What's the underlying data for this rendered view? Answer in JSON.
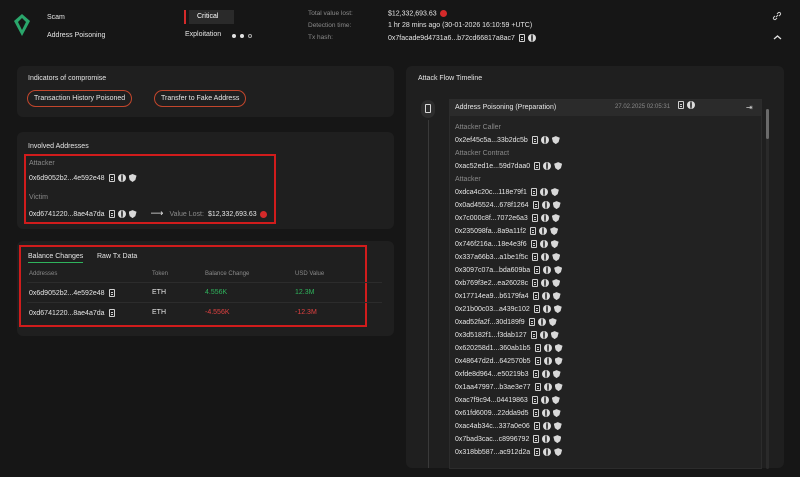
{
  "header": {
    "type": "Scam",
    "subtype": "Address Poisoning",
    "severity": "Critical",
    "stage": "Exploitation",
    "stage_dots": 3,
    "stage_active": 2,
    "total_value_lost_label": "Total value lost:",
    "total_value_lost": "$12,332,693.63",
    "detection_time_label": "Detection time:",
    "detection_time": "1 hr 28 mins ago (30-01-2026 16:10:59 +UTC)",
    "tx_hash_label": "Tx hash:",
    "tx_hash": "0x7facade9d4731a6...b72cd66817a8ac7",
    "link_icon": "link-icon",
    "collapse_icon": "chevron-up-icon"
  },
  "indicators": {
    "title": "Indicators of compromise",
    "items": [
      "Transaction History Poisoned",
      "Transfer to Fake Address"
    ]
  },
  "involved": {
    "title": "Involved Addresses",
    "attacker_label": "Attacker",
    "attacker_address": "0x6d9052b2...4e592e48",
    "victim_label": "Victim",
    "victim_address": "0xd6741220...8ae4a7da",
    "value_lost_label": "Value Lost:",
    "value_lost": "$12,332,693.63"
  },
  "balance": {
    "tabs": [
      "Balance Changes",
      "Raw Tx Data"
    ],
    "active_tab": 0,
    "columns": [
      "Addresses",
      "Token",
      "Balance Change",
      "USD Value"
    ],
    "rows": [
      {
        "address": "0x6d9052b2...4e592e48",
        "token": "ETH",
        "change": "4.556K",
        "usd": "12.3M"
      },
      {
        "address": "0xd6741220...8ae4a7da",
        "token": "ETH",
        "change": "-4.556K",
        "usd": "-12.3M"
      }
    ]
  },
  "timeline": {
    "title": "Attack Flow Timeline",
    "step_title": "Address Poisoning (Preparation)",
    "step_time": "27.02.2025 02:05:31",
    "attacker_caller_label": "Attacker Caller",
    "attacker_caller": "0x2ef45c5a...33b2dc5b",
    "attacker_contract_label": "Attacker Contract",
    "attacker_contract": "0xac52ed1e...59d7daa0",
    "attacker_label": "Attacker",
    "attacker_addresses": [
      "0xdca4c20c...118e79f1",
      "0x0ad45524...678f1264",
      "0x7c000c8f...7072e6a3",
      "0x235098fa...8a9a11f2",
      "0x746f216a...18e4e3f6",
      "0x337a66b3...a1be1f5c",
      "0x3097c07a...bda609ba",
      "0xb769f3e2...ea26028c",
      "0x17714ea9...b6179fa4",
      "0x21b00c03...a439c102",
      "0xad52fa2f...30d189f9",
      "0x3d5182f1...f3dab127",
      "0x620258d1...360ab1b5",
      "0x48647d2d...642570b5",
      "0xfde8d964...e50219b3",
      "0x1aa47997...b3ae3e77",
      "0xac7f9c94...04419863",
      "0x61fd6009...22dda9d5",
      "0xac4ab34c...337a0e06",
      "0x7bad3cac...c8996792",
      "0x318bb587...ac912d2a"
    ]
  }
}
